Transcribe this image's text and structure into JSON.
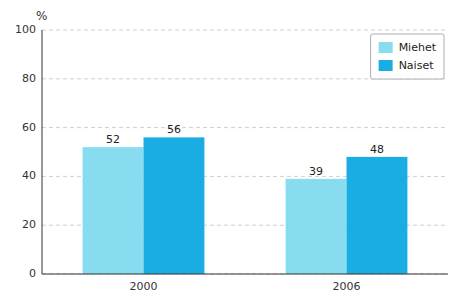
{
  "chart_data": {
    "type": "bar",
    "ylabel": "%",
    "categories": [
      "2000",
      "2006"
    ],
    "series": [
      {
        "name": "Miehet",
        "color": "#87DDEF",
        "values": [
          52,
          39
        ]
      },
      {
        "name": "Naiset",
        "color": "#1AADE4",
        "values": [
          56,
          48
        ]
      }
    ],
    "ylim": [
      0,
      100
    ],
    "yticks": [
      0,
      20,
      40,
      60,
      80,
      100
    ],
    "grid": true,
    "legend": "upper right",
    "data_labels": true
  }
}
